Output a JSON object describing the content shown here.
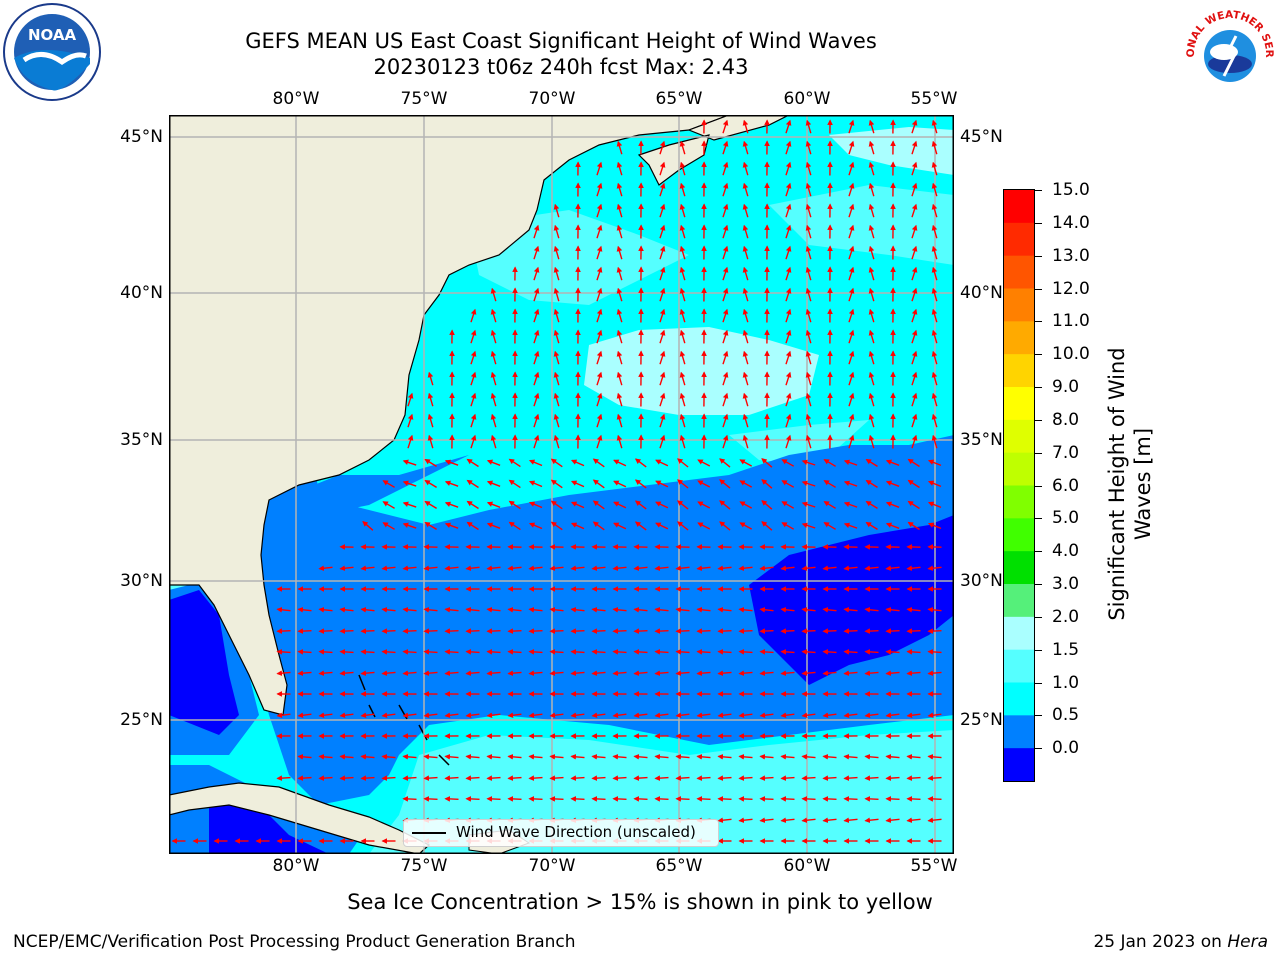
{
  "title": {
    "line1": "GEFS MEAN US East Coast Significant Height of Wind Waves",
    "line2": "20230123 t06z 240h fcst   Max: 2.43"
  },
  "logos": {
    "left": {
      "icon": "noaa-logo",
      "text": "NOAA"
    },
    "right": {
      "icon": "national-weather-service-logo",
      "text": "NATIONAL WEATHER SERVICE"
    }
  },
  "map": {
    "lon_labels": [
      "80°W",
      "75°W",
      "70°W",
      "65°W",
      "60°W",
      "55°W"
    ],
    "lat_labels": [
      "45°N",
      "40°N",
      "35°N",
      "30°N",
      "25°N"
    ],
    "colors": {
      "land": "#efeedc",
      "grid": "#b4b4b4",
      "arrow": "#ff0000",
      "coast": "#000000"
    },
    "legend": "Wind Wave Direction (unscaled)"
  },
  "colorbar": {
    "title_line1": "Significant Height of Wind",
    "title_line2": "Waves [m]",
    "ticks": [
      "15.0",
      "14.0",
      "13.0",
      "12.0",
      "11.0",
      "10.0",
      "9.0",
      "8.0",
      "7.0",
      "6.0",
      "5.0",
      "4.0",
      "3.0",
      "2.0",
      "1.5",
      "1.0",
      "0.5",
      "0.0"
    ],
    "colors_top_to_bottom": [
      "#ff0000",
      "#ff2a00",
      "#ff5500",
      "#ff8000",
      "#ffaa00",
      "#ffd400",
      "#ffff00",
      "#dfff00",
      "#bfff00",
      "#80ff00",
      "#40ff00",
      "#00e000",
      "#55f07a",
      "#aaffff",
      "#55ffff",
      "#00ffff",
      "#0080ff",
      "#0000ff"
    ]
  },
  "sea_ice_note": "Sea Ice Concentration > 15% is shown in pink to yellow",
  "footer": {
    "left": "NCEP/EMC/Verification Post Processing Product Generation Branch",
    "date": "25 Jan 2023 on",
    "host": "Hera"
  }
}
